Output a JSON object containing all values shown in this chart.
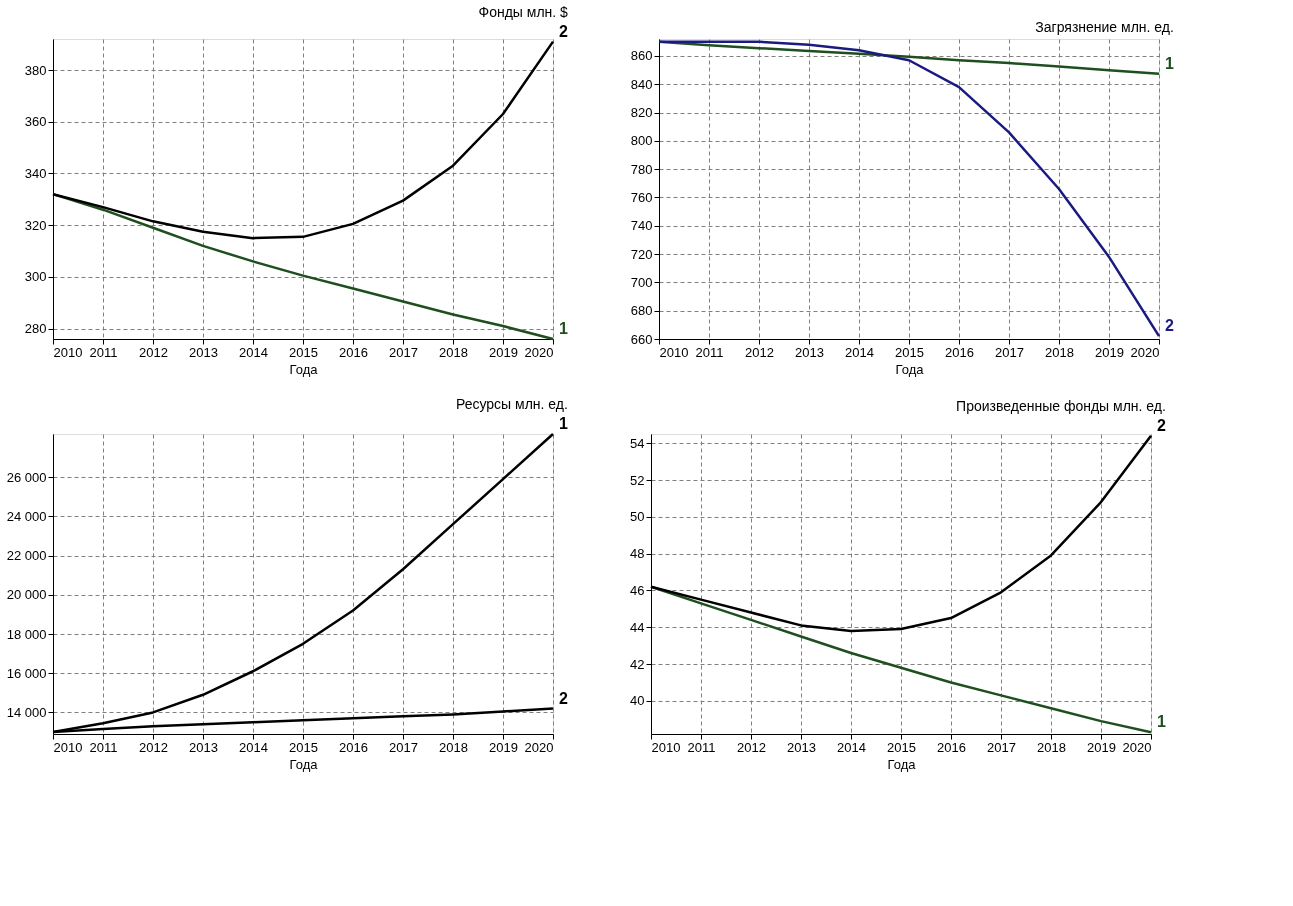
{
  "chart_data": [
    {
      "type": "line",
      "title": "Фонды  млн. $",
      "xlabel": "Года",
      "x": [
        2010,
        2011,
        2012,
        2013,
        2014,
        2015,
        2016,
        2017,
        2018,
        2019,
        2020
      ],
      "xlim": [
        2010,
        2020
      ],
      "xticks": [
        2010,
        2011,
        2012,
        2013,
        2014,
        2015,
        2016,
        2017,
        2018,
        2019,
        2020
      ],
      "ylim": [
        276,
        392
      ],
      "yticks": [
        280,
        300,
        320,
        340,
        360,
        380
      ],
      "grid": true,
      "series": [
        {
          "name": "1",
          "color": "#1f4f1f",
          "values": [
            332,
            326,
            319,
            312,
            306,
            300.5,
            295.5,
            290.5,
            285.5,
            281,
            276
          ]
        },
        {
          "name": "2",
          "color": "#000000",
          "values": [
            332,
            327,
            321.5,
            317.5,
            315,
            315.5,
            320.5,
            329.5,
            343,
            363,
            391
          ]
        }
      ]
    },
    {
      "type": "line",
      "title": "Загрязнение  млн. ед.",
      "xlabel": "Года",
      "x": [
        2010,
        2011,
        2012,
        2013,
        2014,
        2015,
        2016,
        2017,
        2018,
        2019,
        2020
      ],
      "xlim": [
        2010,
        2020
      ],
      "xticks": [
        2010,
        2011,
        2012,
        2013,
        2014,
        2015,
        2016,
        2017,
        2018,
        2019,
        2020
      ],
      "ylim": [
        660,
        872
      ],
      "yticks": [
        660,
        680,
        700,
        720,
        740,
        760,
        780,
        800,
        820,
        840,
        860
      ],
      "grid": true,
      "series": [
        {
          "name": "1",
          "color": "#1f4f1f",
          "values": [
            870,
            867.5,
            865.5,
            863.5,
            861.5,
            859.5,
            857,
            855,
            852.5,
            850,
            847.5
          ]
        },
        {
          "name": "2",
          "color": "#1a1a80",
          "values": [
            870,
            870,
            870,
            868,
            864,
            857,
            838,
            806,
            766,
            718,
            662
          ]
        }
      ]
    },
    {
      "type": "line",
      "title": "Ресурсы  млн. ед.",
      "xlabel": "Года",
      "x": [
        2010,
        2011,
        2012,
        2013,
        2014,
        2015,
        2016,
        2017,
        2018,
        2019,
        2020
      ],
      "xlim": [
        2010,
        2020
      ],
      "xticks": [
        2010,
        2011,
        2012,
        2013,
        2014,
        2015,
        2016,
        2017,
        2018,
        2019,
        2020
      ],
      "ylim": [
        12900,
        28200
      ],
      "yticks": [
        {
          "value": 14000,
          "label": "14 000"
        },
        {
          "value": 16000,
          "label": "16 000"
        },
        {
          "value": 18000,
          "label": "18 000"
        },
        {
          "value": 20000,
          "label": "20 000"
        },
        {
          "value": 22000,
          "label": "22 000"
        },
        {
          "value": 24000,
          "label": "24 000"
        },
        {
          "value": 26000,
          "label": "26 000"
        }
      ],
      "grid": true,
      "series": [
        {
          "name": "1",
          "color": "#000000",
          "values": [
            13000,
            13450,
            14000,
            14900,
            16100,
            17500,
            19200,
            21300,
            23600,
            25900,
            28200
          ]
        },
        {
          "name": "2",
          "color": "#000000",
          "values": [
            13000,
            13150,
            13300,
            13400,
            13500,
            13600,
            13700,
            13800,
            13900,
            14050,
            14200
          ]
        }
      ]
    },
    {
      "type": "line",
      "title": "Произведенные фонды  млн. ед.",
      "xlabel": "Года",
      "x": [
        2010,
        2011,
        2012,
        2013,
        2014,
        2015,
        2016,
        2017,
        2018,
        2019,
        2020
      ],
      "xlim": [
        2010,
        2020
      ],
      "xticks": [
        2010,
        2011,
        2012,
        2013,
        2014,
        2015,
        2016,
        2017,
        2018,
        2019,
        2020
      ],
      "ylim": [
        38.2,
        54.5
      ],
      "yticks": [
        40,
        42,
        44,
        46,
        48,
        50,
        52,
        54
      ],
      "grid": true,
      "series": [
        {
          "name": "1",
          "color": "#1f4f1f",
          "values": [
            46.2,
            45.3,
            44.4,
            43.5,
            42.6,
            41.8,
            41.0,
            40.3,
            39.6,
            38.9,
            38.3
          ]
        },
        {
          "name": "2",
          "color": "#000000",
          "values": [
            46.2,
            45.5,
            44.8,
            44.1,
            43.8,
            43.9,
            44.5,
            45.9,
            47.9,
            50.8,
            54.4
          ]
        }
      ]
    }
  ]
}
